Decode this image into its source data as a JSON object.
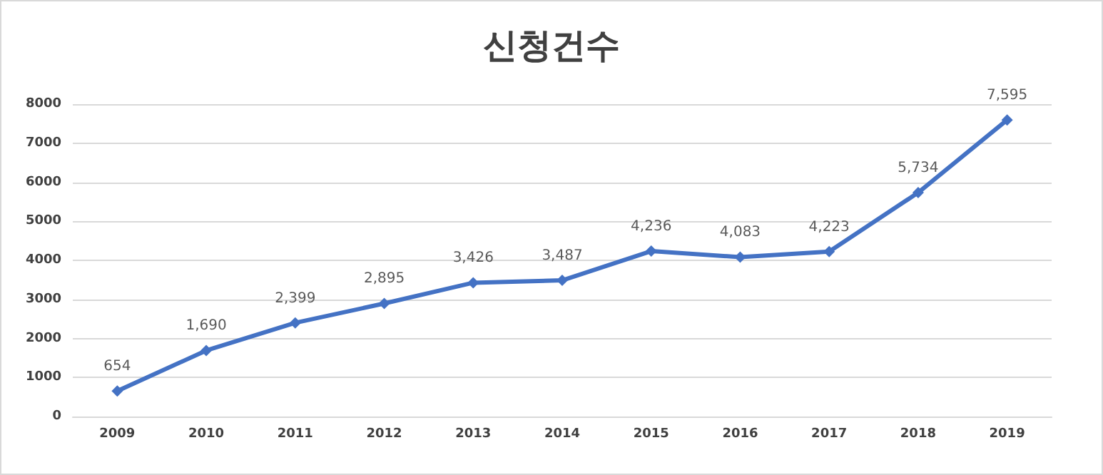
{
  "chart_data": {
    "type": "line",
    "title": "신청건수",
    "categories": [
      "2009",
      "2010",
      "2011",
      "2012",
      "2013",
      "2014",
      "2015",
      "2016",
      "2017",
      "2018",
      "2019"
    ],
    "values": [
      654,
      1690,
      2399,
      2895,
      3426,
      3487,
      4236,
      4083,
      4223,
      5734,
      7595
    ],
    "color": "#4472c4",
    "ylim": [
      0,
      8000
    ],
    "yticks": [
      0,
      1000,
      2000,
      3000,
      4000,
      5000,
      6000,
      7000,
      8000
    ],
    "value_labels": [
      "654",
      "1,690",
      "2,399",
      "2,895",
      "3,426",
      "3,487",
      "4,236",
      "4,083",
      "4,223",
      "5,734",
      "7,595"
    ],
    "grid": "y",
    "marker": "diamond",
    "line_style": "solid"
  }
}
